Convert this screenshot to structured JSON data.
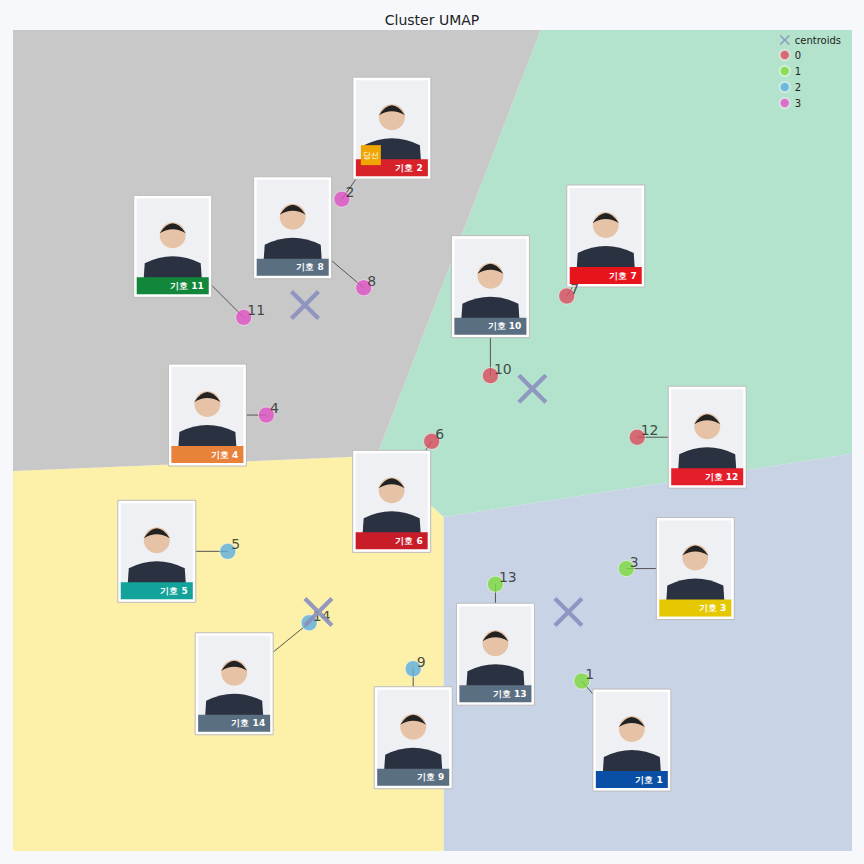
{
  "chart_data": {
    "type": "scatter",
    "title": "Cluster UMAP",
    "xlim": [
      0,
      100
    ],
    "ylim": [
      0,
      100
    ],
    "tick_labels": false,
    "grid": false,
    "legend": "upper right",
    "centroids": {
      "name": "centroids",
      "color": "#8a8fbf",
      "marker": "x",
      "x": [
        61.9,
        66.2,
        36.4,
        34.8
      ],
      "y": [
        56.3,
        29.1,
        29.1,
        66.5
      ]
    },
    "series": [
      {
        "name": "0",
        "color": "#dc4b5d",
        "marker": "circle",
        "x": [
          66.0,
          56.9,
          49.9,
          74.4
        ],
        "y": [
          67.6,
          57.9,
          49.9,
          50.4
        ],
        "point_labels": [
          "7",
          "10",
          "6",
          "12"
        ],
        "card_labels": [
          "기호 7",
          "기호 10",
          "기호 6",
          "기호 12"
        ]
      },
      {
        "name": "1",
        "color": "#7edb3e",
        "marker": "circle",
        "x": [
          57.5,
          73.1,
          67.8
        ],
        "y": [
          32.5,
          34.4,
          20.7
        ],
        "point_labels": [
          "13",
          "3",
          "1"
        ],
        "card_labels": [
          "기호 13",
          "기호 3",
          "기호 1"
        ]
      },
      {
        "name": "2",
        "color": "#5aaee0",
        "marker": "circle",
        "x": [
          25.6,
          35.3,
          47.7
        ],
        "y": [
          36.5,
          27.8,
          22.2
        ],
        "point_labels": [
          "5",
          "14",
          "9"
        ],
        "card_labels": [
          "기호 5",
          "기호 14",
          "기호 9"
        ]
      },
      {
        "name": "3",
        "color": "#e052c6",
        "marker": "circle",
        "x": [
          39.2,
          41.8,
          27.5,
          30.2
        ],
        "y": [
          79.4,
          68.6,
          65.0,
          53.1
        ],
        "point_labels": [
          "2",
          "8",
          "11",
          "4"
        ],
        "card_labels": [
          "기호 2",
          "기호 8",
          "기호 11",
          "기호 4"
        ]
      }
    ],
    "annotations": [
      {
        "text": "당선",
        "card": "기호 2"
      }
    ]
  }
}
